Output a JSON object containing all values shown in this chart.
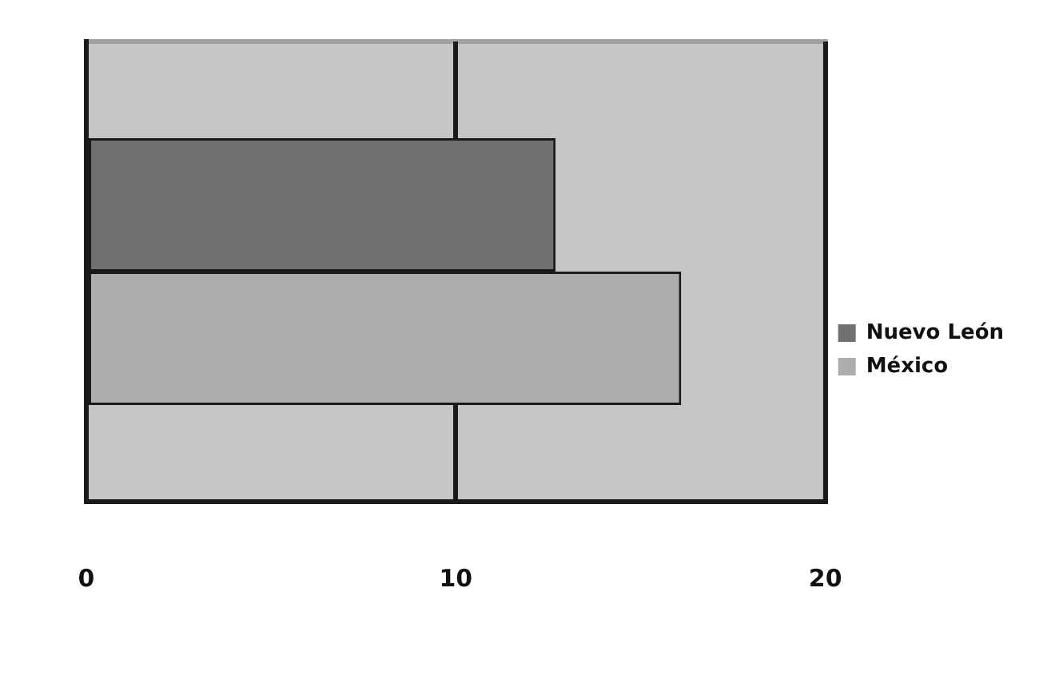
{
  "chart_data": {
    "type": "bar",
    "orientation": "horizontal",
    "categories": [
      null
    ],
    "series": [
      {
        "name": "Nuevo León",
        "color": "#707070",
        "values": [
          12.7
        ]
      },
      {
        "name": "México",
        "color": "#adadad",
        "values": [
          16.1
        ]
      }
    ],
    "xlim": [
      0,
      20
    ],
    "xticks": [
      0,
      10,
      20
    ],
    "grid": "x",
    "legend": "right"
  }
}
